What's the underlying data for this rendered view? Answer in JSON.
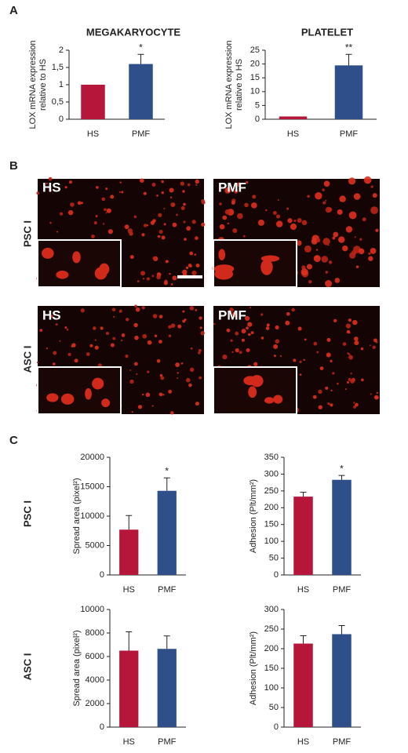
{
  "panel_labels": [
    "A",
    "B",
    "C"
  ],
  "row_labels": [
    "PSC I",
    "ASC I",
    "PSC I",
    "ASC I"
  ],
  "image_labels": [
    "HS",
    "PMF",
    "HS",
    "PMF"
  ],
  "chart_data": [
    {
      "type": "bar",
      "title": "MEGAKARYOCYTE",
      "ylabel": [
        "LOX mRNA expression",
        "relative to HS"
      ],
      "categories": [
        "HS",
        "PMF"
      ],
      "values": [
        1,
        1.6
      ],
      "errors": [
        0,
        0.28
      ],
      "colors": [
        "#b5163a",
        "#2e4f8a"
      ],
      "significance": [
        null,
        "*"
      ],
      "ylim": [
        0,
        2
      ],
      "yticks": [
        0,
        {
          "value": 0.5,
          "label": "0,5"
        },
        1,
        {
          "value": 1.5,
          "label": "1,5"
        },
        2
      ]
    },
    {
      "type": "bar",
      "title": "PLATELET",
      "ylabel": [
        "LOX mRNA expression",
        "relative to HS"
      ],
      "categories": [
        "HS",
        "PMF"
      ],
      "values": [
        1,
        19.5
      ],
      "errors": [
        0,
        4
      ],
      "colors": [
        "#b5163a",
        "#2e4f8a"
      ],
      "significance": [
        null,
        "**"
      ],
      "ylim": [
        0,
        25
      ],
      "yticks": [
        0,
        5,
        10,
        15,
        20,
        25
      ]
    },
    {
      "type": "bar",
      "ylabel": [
        "Spread area (pixel²)"
      ],
      "categories": [
        "HS",
        "PMF"
      ],
      "values": [
        7700,
        14300
      ],
      "errors": [
        2400,
        2200
      ],
      "colors": [
        "#b5163a",
        "#2e4f8a"
      ],
      "significance": [
        null,
        "*"
      ],
      "ylim": [
        0,
        20000
      ],
      "yticks": [
        0,
        5000,
        10000,
        15000,
        20000
      ]
    },
    {
      "type": "bar",
      "ylabel": [
        "Adhesion (Plt/mm²)"
      ],
      "categories": [
        "HS",
        "PMF"
      ],
      "values": [
        233,
        283
      ],
      "errors": [
        13,
        13
      ],
      "colors": [
        "#b5163a",
        "#2e4f8a"
      ],
      "significance": [
        null,
        "*"
      ],
      "ylim": [
        0,
        350
      ],
      "yticks": [
        0,
        50,
        100,
        150,
        200,
        250,
        300,
        350
      ]
    },
    {
      "type": "bar",
      "ylabel": [
        "Spread area (pixel²)"
      ],
      "categories": [
        "HS",
        "PMF"
      ],
      "values": [
        6500,
        6650
      ],
      "errors": [
        1600,
        1100
      ],
      "colors": [
        "#b5163a",
        "#2e4f8a"
      ],
      "ylim": [
        0,
        10000
      ],
      "yticks": [
        0,
        2000,
        4000,
        6000,
        8000,
        10000
      ]
    },
    {
      "type": "bar",
      "ylabel": [
        "Adhesion (Plt/mm²)"
      ],
      "categories": [
        "HS",
        "PMF"
      ],
      "values": [
        213,
        237
      ],
      "errors": [
        20,
        22
      ],
      "colors": [
        "#b5163a",
        "#2e4f8a"
      ],
      "ylim": [
        0,
        300
      ],
      "yticks": [
        0,
        50,
        100,
        150,
        200,
        250,
        300
      ]
    }
  ]
}
